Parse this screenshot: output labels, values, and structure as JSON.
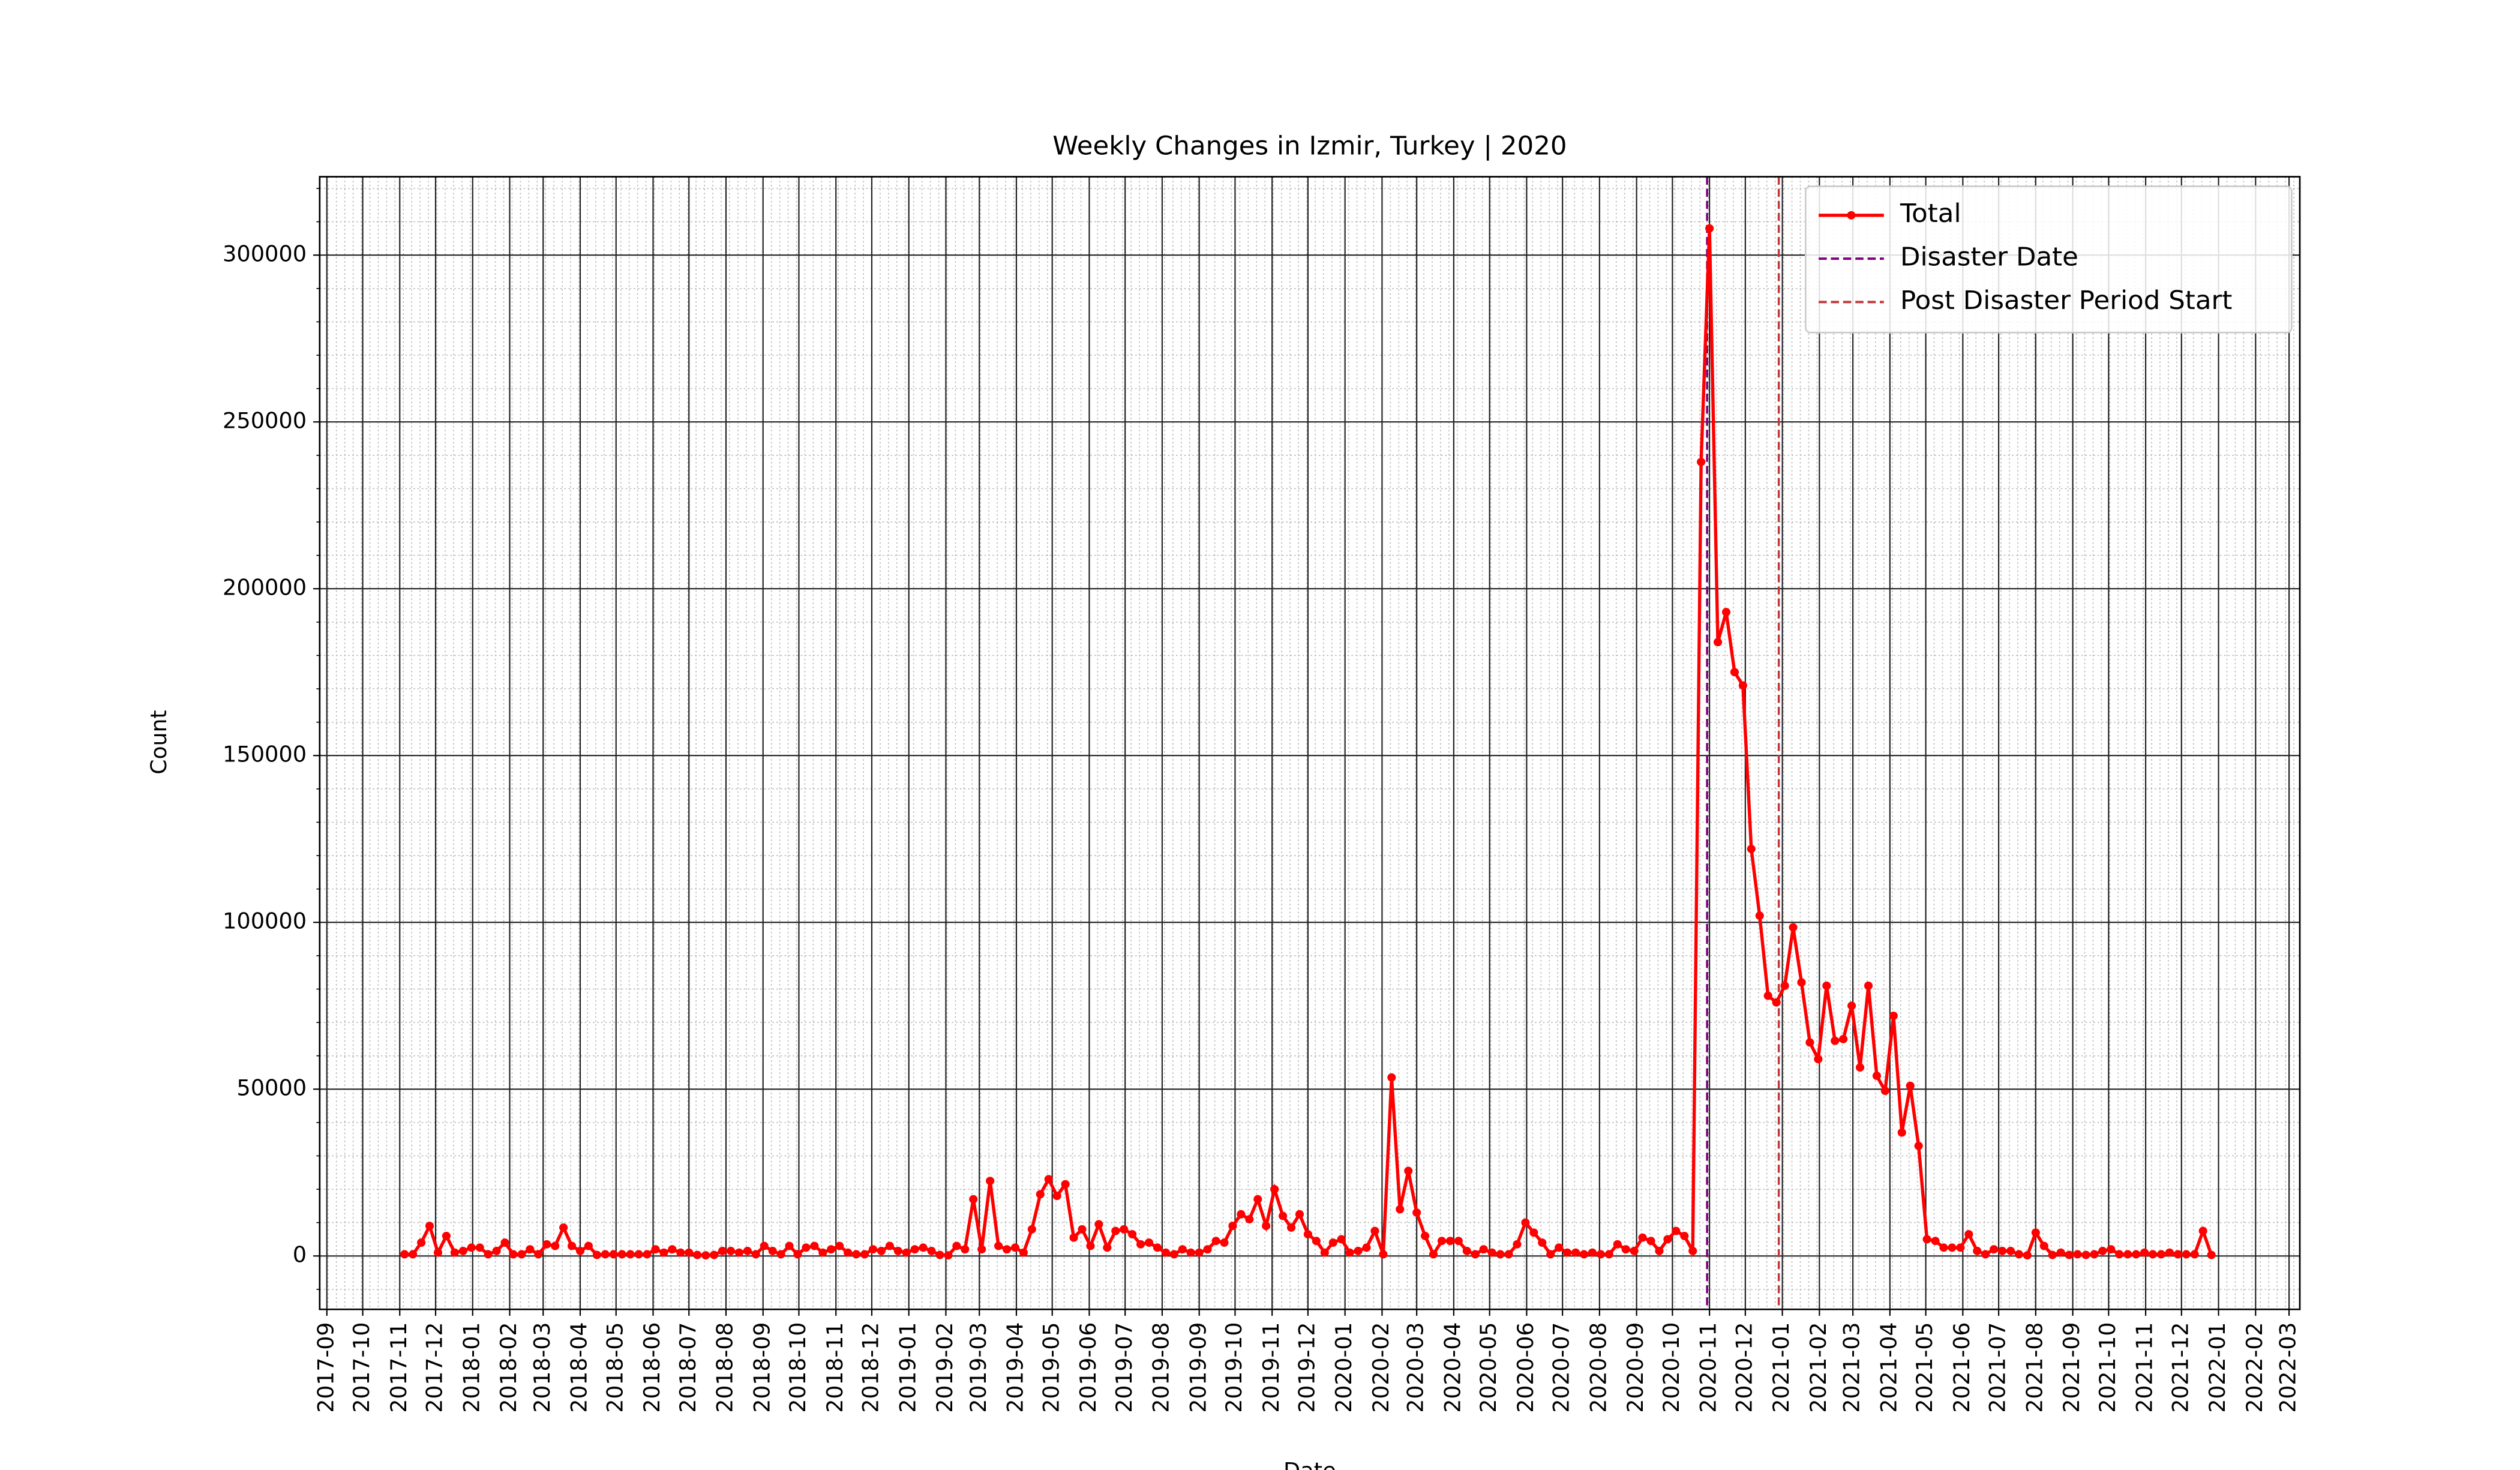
{
  "chart_data": {
    "type": "line",
    "title": "Weekly Changes in Izmir, Turkey | 2020",
    "xlabel": "Date",
    "ylabel": "Count",
    "x": [
      "2017-11-05",
      "2017-11-12",
      "2017-11-19",
      "2017-11-26",
      "2017-12-03",
      "2017-12-10",
      "2017-12-17",
      "2017-12-24",
      "2017-12-31",
      "2018-01-07",
      "2018-01-14",
      "2018-01-21",
      "2018-01-28",
      "2018-02-04",
      "2018-02-11",
      "2018-02-18",
      "2018-02-25",
      "2018-03-04",
      "2018-03-11",
      "2018-03-18",
      "2018-03-25",
      "2018-04-01",
      "2018-04-08",
      "2018-04-15",
      "2018-04-22",
      "2018-04-29",
      "2018-05-06",
      "2018-05-13",
      "2018-05-20",
      "2018-05-27",
      "2018-06-03",
      "2018-06-10",
      "2018-06-17",
      "2018-06-24",
      "2018-07-01",
      "2018-07-08",
      "2018-07-15",
      "2018-07-22",
      "2018-07-29",
      "2018-08-05",
      "2018-08-12",
      "2018-08-19",
      "2018-08-26",
      "2018-09-02",
      "2018-09-09",
      "2018-09-16",
      "2018-09-23",
      "2018-09-30",
      "2018-10-07",
      "2018-10-14",
      "2018-10-21",
      "2018-10-28",
      "2018-11-04",
      "2018-11-11",
      "2018-11-18",
      "2018-11-25",
      "2018-12-02",
      "2018-12-09",
      "2018-12-16",
      "2018-12-23",
      "2018-12-30",
      "2019-01-06",
      "2019-01-13",
      "2019-01-20",
      "2019-01-27",
      "2019-02-03",
      "2019-02-10",
      "2019-02-17",
      "2019-02-24",
      "2019-03-03",
      "2019-03-10",
      "2019-03-17",
      "2019-03-24",
      "2019-03-31",
      "2019-04-07",
      "2019-04-14",
      "2019-04-21",
      "2019-04-28",
      "2019-05-05",
      "2019-05-12",
      "2019-05-19",
      "2019-05-26",
      "2019-06-02",
      "2019-06-09",
      "2019-06-16",
      "2019-06-23",
      "2019-06-30",
      "2019-07-07",
      "2019-07-14",
      "2019-07-21",
      "2019-07-28",
      "2019-08-04",
      "2019-08-11",
      "2019-08-18",
      "2019-08-25",
      "2019-09-01",
      "2019-09-08",
      "2019-09-15",
      "2019-09-22",
      "2019-09-29",
      "2019-10-06",
      "2019-10-13",
      "2019-10-20",
      "2019-10-27",
      "2019-11-03",
      "2019-11-10",
      "2019-11-17",
      "2019-11-24",
      "2019-12-01",
      "2019-12-08",
      "2019-12-15",
      "2019-12-22",
      "2019-12-29",
      "2020-01-05",
      "2020-01-12",
      "2020-01-19",
      "2020-01-26",
      "2020-02-02",
      "2020-02-09",
      "2020-02-16",
      "2020-02-23",
      "2020-03-01",
      "2020-03-08",
      "2020-03-15",
      "2020-03-22",
      "2020-03-29",
      "2020-04-05",
      "2020-04-12",
      "2020-04-19",
      "2020-04-26",
      "2020-05-03",
      "2020-05-10",
      "2020-05-17",
      "2020-05-24",
      "2020-05-31",
      "2020-06-07",
      "2020-06-14",
      "2020-06-21",
      "2020-06-28",
      "2020-07-05",
      "2020-07-12",
      "2020-07-19",
      "2020-07-26",
      "2020-08-02",
      "2020-08-09",
      "2020-08-16",
      "2020-08-23",
      "2020-08-30",
      "2020-09-06",
      "2020-09-13",
      "2020-09-20",
      "2020-09-27",
      "2020-10-04",
      "2020-10-11",
      "2020-10-18",
      "2020-10-25",
      "2020-11-01",
      "2020-11-08",
      "2020-11-15",
      "2020-11-22",
      "2020-11-29",
      "2020-12-06",
      "2020-12-13",
      "2020-12-20",
      "2020-12-27",
      "2021-01-03",
      "2021-01-10",
      "2021-01-17",
      "2021-01-24",
      "2021-01-31",
      "2021-02-07",
      "2021-02-14",
      "2021-02-21",
      "2021-02-28",
      "2021-03-07",
      "2021-03-14",
      "2021-03-21",
      "2021-03-28",
      "2021-04-04",
      "2021-04-11",
      "2021-04-18",
      "2021-04-25",
      "2021-05-02",
      "2021-05-09",
      "2021-05-16",
      "2021-05-23",
      "2021-05-30",
      "2021-06-06",
      "2021-06-13",
      "2021-06-20",
      "2021-06-27",
      "2021-07-04",
      "2021-07-11",
      "2021-07-18",
      "2021-07-25",
      "2021-08-01",
      "2021-08-08",
      "2021-08-15",
      "2021-08-22",
      "2021-08-29",
      "2021-09-05",
      "2021-09-12",
      "2021-09-19",
      "2021-09-26",
      "2021-10-03",
      "2021-10-10",
      "2021-10-17",
      "2021-10-24",
      "2021-10-31",
      "2021-11-07",
      "2021-11-14",
      "2021-11-21",
      "2021-11-28",
      "2021-12-05",
      "2021-12-12",
      "2021-12-19",
      "2021-12-26"
    ],
    "series": [
      {
        "name": "Total",
        "color": "#ff0000",
        "values": [
          500,
          500,
          4000,
          9000,
          1000,
          6000,
          1000,
          1500,
          2500,
          2500,
          500,
          1500,
          4000,
          500,
          500,
          2000,
          500,
          3500,
          3000,
          8500,
          3000,
          1500,
          3000,
          300,
          500,
          500,
          500,
          500,
          500,
          500,
          2000,
          1000,
          2000,
          1000,
          1000,
          300,
          200,
          300,
          1500,
          1500,
          1000,
          1500,
          500,
          3000,
          1500,
          500,
          3000,
          500,
          2500,
          3000,
          1000,
          2000,
          3000,
          1000,
          500,
          500,
          2000,
          1500,
          3000,
          1500,
          1000,
          2000,
          2500,
          1500,
          300,
          200,
          3000,
          2000,
          17000,
          2000,
          22500,
          3000,
          2000,
          2500,
          1000,
          8000,
          18500,
          23000,
          18000,
          21500,
          5500,
          8000,
          3000,
          9500,
          2500,
          7500,
          8000,
          6500,
          3500,
          4000,
          2500,
          1000,
          500,
          2000,
          1000,
          1000,
          2000,
          4500,
          4000,
          9000,
          12500,
          11000,
          17000,
          9000,
          20000,
          12000,
          8500,
          12500,
          6500,
          4500,
          1000,
          4000,
          5000,
          1000,
          1500,
          2500,
          7500,
          500,
          53500,
          14000,
          25500,
          13000,
          6000,
          500,
          4500,
          4500,
          4500,
          1500,
          500,
          2000,
          1000,
          500,
          500,
          3500,
          10000,
          7000,
          4000,
          500,
          2500,
          1000,
          1000,
          500,
          1000,
          500,
          500,
          3500,
          2000,
          1500,
          5500,
          4500,
          1500,
          5000,
          7500,
          6000,
          1500,
          238000,
          308000,
          184000,
          193000,
          175000,
          171000,
          122000,
          102000,
          78000,
          76000,
          81000,
          98500,
          82000,
          64000,
          59000,
          81000,
          64500,
          65000,
          75000,
          56500,
          81000,
          54000,
          49500,
          72000,
          37000,
          51000,
          33000,
          5000,
          4500,
          2500,
          2500,
          2500,
          6500,
          1500,
          500,
          2000,
          1500,
          1500,
          500,
          200,
          7000,
          3000,
          300,
          1000,
          300,
          500,
          300,
          500,
          1500,
          2000,
          500,
          500,
          500,
          1000,
          500,
          500,
          1000,
          500,
          500,
          500,
          7500,
          300
        ]
      }
    ],
    "vlines": [
      {
        "name": "Disaster Date",
        "x": "2020-10-30",
        "color": "#800080"
      },
      {
        "name": "Post Disaster Period Start",
        "x": "2020-12-29",
        "color": "#c0393b"
      }
    ],
    "xlim": [
      "2017-08-26",
      "2022-03-10"
    ],
    "xticks": [
      "2017-09",
      "2017-10",
      "2017-11",
      "2017-12",
      "2018-01",
      "2018-02",
      "2018-03",
      "2018-04",
      "2018-05",
      "2018-06",
      "2018-07",
      "2018-08",
      "2018-09",
      "2018-10",
      "2018-11",
      "2018-12",
      "2019-01",
      "2019-02",
      "2019-03",
      "2019-04",
      "2019-05",
      "2019-06",
      "2019-07",
      "2019-08",
      "2019-09",
      "2019-10",
      "2019-11",
      "2019-12",
      "2020-01",
      "2020-02",
      "2020-03",
      "2020-04",
      "2020-05",
      "2020-06",
      "2020-07",
      "2020-08",
      "2020-09",
      "2020-10",
      "2020-11",
      "2020-12",
      "2021-01",
      "2021-02",
      "2021-03",
      "2021-04",
      "2021-05",
      "2021-06",
      "2021-07",
      "2021-08",
      "2021-09",
      "2021-10",
      "2021-11",
      "2021-12",
      "2022-01",
      "2022-02",
      "2022-03"
    ],
    "ylim": [
      -16000,
      323500
    ],
    "yticks": [
      0,
      50000,
      100000,
      150000,
      200000,
      250000,
      300000
    ],
    "grid": true,
    "legend": "upper right"
  }
}
